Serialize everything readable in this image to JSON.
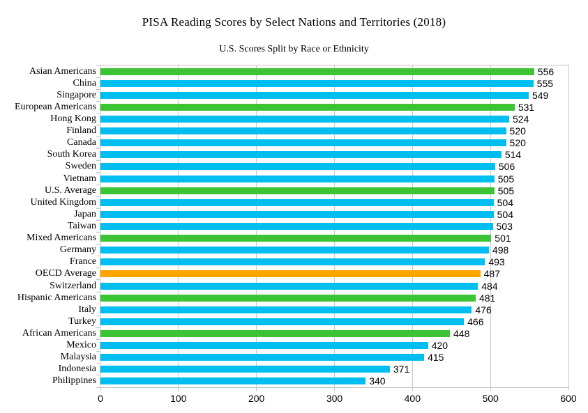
{
  "colors": {
    "country": "#00BFF0",
    "us_group": "#3CC435",
    "oecd": "#FFA500",
    "grid": "#C9C9C9",
    "text": "#000000"
  },
  "chart_data": {
    "type": "bar",
    "orientation": "horizontal",
    "title": "PISA Reading Scores by Select Nations and Territories (2018)",
    "subtitle": "U.S. Scores Split by Race or Ethnicity",
    "xlabel": "",
    "ylabel": "",
    "xlim": [
      0,
      600
    ],
    "x_ticks": [
      0,
      100,
      200,
      300,
      400,
      500,
      600
    ],
    "grid": "vertical",
    "legend_position": "none",
    "value_labels": "outside-end",
    "categories": [
      "Asian Americans",
      "China",
      "Singapore",
      "European Americans",
      "Hong Kong",
      "Finland",
      "Canada",
      "South Korea",
      "Sweden",
      "Vietnam",
      "U.S. Average",
      "United Kingdom",
      "Japan",
      "Taiwan",
      "Mixed Americans",
      "Germany",
      "France",
      "OECD Average",
      "Switzerland",
      "Hispanic Americans",
      "Italy",
      "Turkey",
      "African Americans",
      "Mexico",
      "Malaysia",
      "Indonesia",
      "Philippines"
    ],
    "values": [
      556,
      555,
      549,
      531,
      524,
      520,
      520,
      514,
      506,
      505,
      505,
      504,
      504,
      503,
      501,
      498,
      493,
      487,
      484,
      481,
      476,
      466,
      448,
      420,
      415,
      371,
      340
    ],
    "groups": [
      "us_group",
      "country",
      "country",
      "us_group",
      "country",
      "country",
      "country",
      "country",
      "country",
      "country",
      "us_group",
      "country",
      "country",
      "country",
      "us_group",
      "country",
      "country",
      "oecd",
      "country",
      "us_group",
      "country",
      "country",
      "us_group",
      "country",
      "country",
      "country",
      "country"
    ]
  }
}
